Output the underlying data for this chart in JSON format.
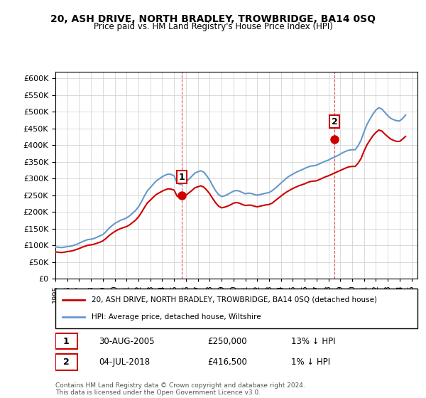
{
  "title": "20, ASH DRIVE, NORTH BRADLEY, TROWBRIDGE, BA14 0SQ",
  "subtitle": "Price paid vs. HM Land Registry's House Price Index (HPI)",
  "ylabel": "",
  "ylim": [
    0,
    620000
  ],
  "yticks": [
    0,
    50000,
    100000,
    150000,
    200000,
    250000,
    300000,
    350000,
    400000,
    450000,
    500000,
    550000,
    600000
  ],
  "xlim_start": 1995.0,
  "xlim_end": 2025.5,
  "background_color": "#ffffff",
  "grid_color": "#cccccc",
  "hpi_color": "#6699cc",
  "price_color": "#cc0000",
  "sale1": {
    "date_x": 2005.667,
    "price": 250000,
    "label": "1"
  },
  "sale2": {
    "date_x": 2018.5,
    "price": 416500,
    "label": "2"
  },
  "legend_entry1": "20, ASH DRIVE, NORTH BRADLEY, TROWBRIDGE, BA14 0SQ (detached house)",
  "legend_entry2": "HPI: Average price, detached house, Wiltshire",
  "annotation1_date": "30-AUG-2005",
  "annotation1_price": "£250,000",
  "annotation1_hpi": "13% ↓ HPI",
  "annotation2_date": "04-JUL-2018",
  "annotation2_price": "£416,500",
  "annotation2_hpi": "1% ↓ HPI",
  "footer": "Contains HM Land Registry data © Crown copyright and database right 2024.\nThis data is licensed under the Open Government Licence v3.0.",
  "hpi_data_x": [
    1995.0,
    1995.25,
    1995.5,
    1995.75,
    1996.0,
    1996.25,
    1996.5,
    1996.75,
    1997.0,
    1997.25,
    1997.5,
    1997.75,
    1998.0,
    1998.25,
    1998.5,
    1998.75,
    1999.0,
    1999.25,
    1999.5,
    1999.75,
    2000.0,
    2000.25,
    2000.5,
    2000.75,
    2001.0,
    2001.25,
    2001.5,
    2001.75,
    2002.0,
    2002.25,
    2002.5,
    2002.75,
    2003.0,
    2003.25,
    2003.5,
    2003.75,
    2004.0,
    2004.25,
    2004.5,
    2004.75,
    2005.0,
    2005.25,
    2005.5,
    2005.75,
    2006.0,
    2006.25,
    2006.5,
    2006.75,
    2007.0,
    2007.25,
    2007.5,
    2007.75,
    2008.0,
    2008.25,
    2008.5,
    2008.75,
    2009.0,
    2009.25,
    2009.5,
    2009.75,
    2010.0,
    2010.25,
    2010.5,
    2010.75,
    2011.0,
    2011.25,
    2011.5,
    2011.75,
    2012.0,
    2012.25,
    2012.5,
    2012.75,
    2013.0,
    2013.25,
    2013.5,
    2013.75,
    2014.0,
    2014.25,
    2014.5,
    2014.75,
    2015.0,
    2015.25,
    2015.5,
    2015.75,
    2016.0,
    2016.25,
    2016.5,
    2016.75,
    2017.0,
    2017.25,
    2017.5,
    2017.75,
    2018.0,
    2018.25,
    2018.5,
    2018.75,
    2019.0,
    2019.25,
    2019.5,
    2019.75,
    2020.0,
    2020.25,
    2020.5,
    2020.75,
    2021.0,
    2021.25,
    2021.5,
    2021.75,
    2022.0,
    2022.25,
    2022.5,
    2022.75,
    2023.0,
    2023.25,
    2023.5,
    2023.75,
    2024.0,
    2024.25,
    2024.5
  ],
  "hpi_data_y": [
    95000,
    94000,
    93000,
    94000,
    96000,
    97000,
    99000,
    102000,
    106000,
    110000,
    114000,
    117000,
    118000,
    120000,
    124000,
    128000,
    132000,
    140000,
    150000,
    158000,
    165000,
    170000,
    175000,
    178000,
    182000,
    188000,
    196000,
    204000,
    215000,
    230000,
    248000,
    263000,
    273000,
    283000,
    293000,
    299000,
    305000,
    310000,
    313000,
    312000,
    308000,
    287000,
    282000,
    285000,
    291000,
    298000,
    307000,
    316000,
    320000,
    323000,
    319000,
    308000,
    295000,
    278000,
    263000,
    252000,
    246000,
    248000,
    252000,
    257000,
    262000,
    264000,
    262000,
    258000,
    254000,
    256000,
    255000,
    252000,
    250000,
    252000,
    254000,
    256000,
    258000,
    263000,
    270000,
    278000,
    286000,
    294000,
    302000,
    308000,
    313000,
    318000,
    322000,
    326000,
    330000,
    334000,
    337000,
    338000,
    340000,
    344000,
    348000,
    352000,
    355000,
    360000,
    364000,
    368000,
    373000,
    378000,
    382000,
    385000,
    386000,
    386000,
    398000,
    415000,
    440000,
    462000,
    478000,
    493000,
    505000,
    512000,
    508000,
    498000,
    488000,
    480000,
    476000,
    473000,
    472000,
    480000,
    490000
  ],
  "price_data_x": [
    1995.0,
    1995.25,
    1995.5,
    1995.75,
    1996.0,
    1996.25,
    1996.5,
    1996.75,
    1997.0,
    1997.25,
    1997.5,
    1997.75,
    1998.0,
    1998.25,
    1998.5,
    1998.75,
    1999.0,
    1999.25,
    1999.5,
    1999.75,
    2000.0,
    2000.25,
    2000.5,
    2000.75,
    2001.0,
    2001.25,
    2001.5,
    2001.75,
    2002.0,
    2002.25,
    2002.5,
    2002.75,
    2003.0,
    2003.25,
    2003.5,
    2003.75,
    2004.0,
    2004.25,
    2004.5,
    2004.75,
    2005.0,
    2005.25,
    2005.5,
    2005.75,
    2006.0,
    2006.25,
    2006.5,
    2006.75,
    2007.0,
    2007.25,
    2007.5,
    2007.75,
    2008.0,
    2008.25,
    2008.5,
    2008.75,
    2009.0,
    2009.25,
    2009.5,
    2009.75,
    2010.0,
    2010.25,
    2010.5,
    2010.75,
    2011.0,
    2011.25,
    2011.5,
    2011.75,
    2012.0,
    2012.25,
    2012.5,
    2012.75,
    2013.0,
    2013.25,
    2013.5,
    2013.75,
    2014.0,
    2014.25,
    2014.5,
    2014.75,
    2015.0,
    2015.25,
    2015.5,
    2015.75,
    2016.0,
    2016.25,
    2016.5,
    2016.75,
    2017.0,
    2017.25,
    2017.5,
    2017.75,
    2018.0,
    2018.25,
    2018.5,
    2018.75,
    2019.0,
    2019.25,
    2019.5,
    2019.75,
    2020.0,
    2020.25,
    2020.5,
    2020.75,
    2021.0,
    2021.25,
    2021.5,
    2021.75,
    2022.0,
    2022.25,
    2022.5,
    2022.75,
    2023.0,
    2023.25,
    2023.5,
    2023.75,
    2024.0,
    2024.25,
    2024.5
  ],
  "price_data_y": [
    80000,
    79000,
    78000,
    79000,
    81000,
    82000,
    84000,
    87000,
    90000,
    94000,
    97000,
    100000,
    101000,
    103000,
    106000,
    109000,
    113000,
    120000,
    128000,
    135000,
    141000,
    146000,
    150000,
    153000,
    156000,
    161000,
    168000,
    175000,
    185000,
    198000,
    213000,
    227000,
    235000,
    244000,
    252000,
    257000,
    262000,
    266000,
    269000,
    268000,
    265000,
    247000,
    243000,
    245000,
    250000,
    257000,
    264000,
    272000,
    275000,
    278000,
    274000,
    265000,
    254000,
    240000,
    227000,
    217000,
    212000,
    214000,
    217000,
    221000,
    226000,
    228000,
    226000,
    222000,
    219000,
    220000,
    220000,
    217000,
    215000,
    217000,
    219000,
    221000,
    222000,
    226000,
    233000,
    240000,
    247000,
    254000,
    260000,
    265000,
    270000,
    274000,
    278000,
    281000,
    284000,
    288000,
    291000,
    292000,
    293000,
    297000,
    301000,
    305000,
    308000,
    312000,
    316000,
    320000,
    324000,
    328000,
    332000,
    335000,
    336000,
    336000,
    346000,
    360000,
    382000,
    401000,
    415000,
    428000,
    438000,
    445000,
    442000,
    433000,
    425000,
    418000,
    414000,
    411000,
    411000,
    418000,
    426000
  ]
}
